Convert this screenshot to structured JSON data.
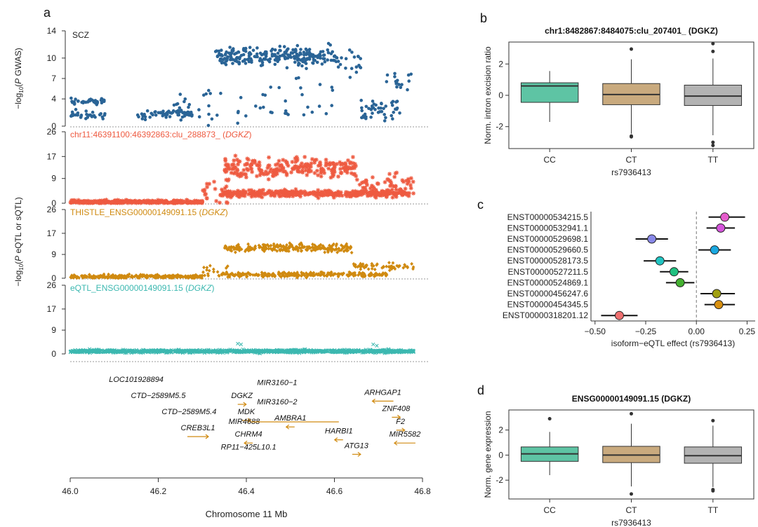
{
  "panel_letters": {
    "a": "a",
    "b": "b",
    "c": "c",
    "d": "d"
  },
  "chart_data": [
    {
      "id": "a",
      "type": "scatter",
      "title": "",
      "xlabel": "Chromosome 11 Mb",
      "xlim": [
        46.0,
        46.8
      ],
      "x_ticks": [
        "46.0",
        "46.2",
        "46.4",
        "46.6",
        "46.8"
      ],
      "ylabel_gwas_pre": "−log",
      "ylabel_gwas_sub": "10",
      "ylabel_gwas_post": "(P GWAS)",
      "ylabel_qtl_pre": "−log",
      "ylabel_qtl_sub": "10",
      "ylabel_qtl_post": "(P eQTL or sQTL)",
      "tracks": [
        {
          "label": "SCZ",
          "label_gene": "",
          "color": "#2a6496",
          "marker": "dot",
          "y_ticks": [
            0,
            4,
            7,
            10,
            14
          ],
          "ylim": [
            0,
            14
          ],
          "pattern": [
            [
              46.0,
              46.08,
              1.6,
              0.6,
              0.4
            ],
            [
              46.0,
              46.08,
              3.6,
              0.4,
              0.45
            ],
            [
              46.15,
              46.2,
              1.5,
              0.6,
              0.3
            ],
            [
              46.2,
              46.28,
              1.8,
              0.7,
              0.6
            ],
            [
              46.22,
              46.28,
              3.0,
              1.8,
              0.2
            ],
            [
              46.28,
              46.36,
              3.0,
              3.0,
              0.15
            ],
            [
              46.33,
              46.6,
              10.3,
              1.3,
              0.9
            ],
            [
              46.38,
              46.6,
              4.0,
              3.5,
              0.15
            ],
            [
              46.6,
              46.66,
              9.0,
              2.0,
              0.4
            ],
            [
              46.66,
              46.75,
              2.5,
              1.5,
              0.5
            ],
            [
              46.7,
              46.78,
              7.0,
              1.3,
              0.2
            ]
          ]
        },
        {
          "label": "chr11:46391100:46392863:clu_288873_ ",
          "label_gene": "DGKZ",
          "color": "#ee5a40",
          "marker": "star",
          "y_ticks": [
            0,
            9,
            17,
            26
          ],
          "ylim": [
            0,
            26
          ],
          "pattern": [
            [
              46.0,
              46.3,
              0.5,
              0.6,
              1.0
            ],
            [
              46.3,
              46.36,
              4.0,
              3.5,
              0.4
            ],
            [
              46.34,
              46.77,
              3.5,
              1.2,
              0.9
            ],
            [
              46.35,
              46.65,
              13.0,
              3.5,
              0.8
            ],
            [
              46.65,
              46.78,
              7.0,
              4.0,
              0.4
            ]
          ]
        },
        {
          "label": "THISTLE_ENSG00000149091.15 ",
          "label_gene": "DGKZ",
          "color": "#d08a10",
          "marker": "diamond",
          "y_ticks": [
            0,
            9,
            17,
            26
          ],
          "ylim": [
            0,
            26
          ],
          "pattern": [
            [
              46.0,
              46.3,
              0.6,
              0.6,
              1.0
            ],
            [
              46.3,
              46.36,
              2.5,
              2.0,
              0.3
            ],
            [
              46.34,
              46.72,
              1.4,
              0.8,
              0.7
            ],
            [
              46.35,
              46.64,
              11.5,
              1.5,
              0.8
            ],
            [
              46.64,
              46.78,
              4.5,
              1.2,
              0.4
            ]
          ]
        },
        {
          "label": "eQTL_ENSG00000149091.15 ",
          "label_gene": "DGKZ",
          "color": "#3cb8b0",
          "marker": "cross",
          "y_ticks": [
            0,
            9,
            17,
            26
          ],
          "ylim": [
            0,
            26
          ],
          "pattern": [
            [
              46.0,
              46.78,
              1.0,
              0.5,
              1.6
            ],
            [
              46.37,
              46.4,
              3.5,
              0.8,
              0.05
            ],
            [
              46.68,
              46.72,
              3.5,
              0.5,
              0.05
            ]
          ]
        }
      ],
      "genes": [
        {
          "name": "LOC101928894",
          "x": 46.15,
          "row": 0,
          "strand": 0
        },
        {
          "name": "CTD−2589M5.5",
          "x": 46.2,
          "row": 1,
          "strand": 0
        },
        {
          "name": "CTD−2589M5.4",
          "x": 46.27,
          "row": 2,
          "strand": 0
        },
        {
          "name": "CREB3L1",
          "x": 46.29,
          "row": 3,
          "strand": 1
        },
        {
          "name": "DGKZ",
          "x": 46.39,
          "row": 1,
          "strand": 1
        },
        {
          "name": "MDK",
          "x": 46.4,
          "row": 2,
          "strand": 1
        },
        {
          "name": "MIR4688",
          "x": 46.395,
          "row": 2.6,
          "strand": 0
        },
        {
          "name": "CHRM4",
          "x": 46.405,
          "row": 3.4,
          "strand": -1
        },
        {
          "name": "RP11−425L10.1",
          "x": 46.405,
          "row": 4.2,
          "strand": 0
        },
        {
          "name": "MIR3160−1",
          "x": 46.47,
          "row": 0.2,
          "strand": 0
        },
        {
          "name": "MIR3160−2",
          "x": 46.47,
          "row": 1.4,
          "strand": 0
        },
        {
          "name": "AMBRA1",
          "x": 46.5,
          "row": 2.4,
          "strand": -1
        },
        {
          "name": "HARBI1",
          "x": 46.61,
          "row": 3.2,
          "strand": -1
        },
        {
          "name": "ATG13",
          "x": 46.65,
          "row": 4.1,
          "strand": 1
        },
        {
          "name": "ARHGAP1",
          "x": 46.71,
          "row": 0.8,
          "strand": -1
        },
        {
          "name": "ZNF408",
          "x": 46.74,
          "row": 1.8,
          "strand": 1
        },
        {
          "name": "F2",
          "x": 46.75,
          "row": 2.6,
          "strand": 1
        },
        {
          "name": "MIR5582",
          "x": 46.76,
          "row": 3.4,
          "strand": -1
        }
      ]
    },
    {
      "id": "b",
      "type": "box",
      "title": "chr1:8482867:8484075:clu_207401_ (DGKZ)",
      "xlabel": "rs7936413",
      "ylabel": "Norm. intron excision ratio",
      "ylim": [
        -3.4,
        3.4
      ],
      "y_ticks": [
        -2,
        0,
        2
      ],
      "boxes": [
        {
          "category": "CC",
          "q1": -0.45,
          "median": 0.6,
          "q3": 0.8,
          "lo": -1.7,
          "hi": 1.55,
          "outliers": [],
          "color": "#5ec4a4"
        },
        {
          "category": "CT",
          "q1": -0.6,
          "median": 0.05,
          "q3": 0.75,
          "lo": -2.45,
          "hi": 2.3,
          "outliers": [
            2.95,
            -2.6,
            -2.65
          ],
          "color": "#c9aa7e"
        },
        {
          "category": "TT",
          "q1": -0.65,
          "median": -0.05,
          "q3": 0.65,
          "lo": -2.55,
          "hi": 2.35,
          "outliers": [
            3.3,
            2.8,
            -3.0,
            -3.2
          ],
          "color": "#b3b3b3"
        }
      ]
    },
    {
      "id": "c",
      "type": "forest",
      "title": "",
      "xlabel": "isoform−eQTL effect (rs7936413)",
      "xlim": [
        -0.52,
        0.29
      ],
      "x_ticks": [
        -0.5,
        -0.25,
        0.0,
        0.25
      ],
      "x_tick_labels": [
        "−0.50",
        "−0.25",
        "0.00",
        "0.25"
      ],
      "rows": [
        {
          "label": "ENST00000534215.5",
          "effect": 0.14,
          "lo": 0.06,
          "hi": 0.24,
          "color": "#e55ccc"
        },
        {
          "label": "ENST00000532941.1",
          "effect": 0.12,
          "lo": 0.05,
          "hi": 0.19,
          "color": "#d555dc"
        },
        {
          "label": "ENST00000529698.1",
          "effect": -0.22,
          "lo": -0.3,
          "hi": -0.14,
          "color": "#8888e8"
        },
        {
          "label": "ENST00000529660.5",
          "effect": 0.09,
          "lo": 0.01,
          "hi": 0.17,
          "color": "#1aa8e0"
        },
        {
          "label": "ENST00000528173.5",
          "effect": -0.18,
          "lo": -0.26,
          "hi": -0.1,
          "color": "#22c4c2"
        },
        {
          "label": "ENST00000527211.5",
          "effect": -0.11,
          "lo": -0.18,
          "hi": -0.04,
          "color": "#20c080"
        },
        {
          "label": "ENST00000524869.1",
          "effect": -0.08,
          "lo": -0.15,
          "hi": -0.01,
          "color": "#44b030"
        },
        {
          "label": "ENST00000456247.6",
          "effect": 0.1,
          "lo": 0.02,
          "hi": 0.19,
          "color": "#a0a010"
        },
        {
          "label": "ENST00000454345.5",
          "effect": 0.11,
          "lo": 0.04,
          "hi": 0.19,
          "color": "#d89010"
        },
        {
          "label": "ENST00000318201.12",
          "effect": -0.38,
          "lo": -0.47,
          "hi": -0.29,
          "color": "#f07070"
        }
      ]
    },
    {
      "id": "d",
      "type": "box",
      "title": "ENSG00000149091.15 (DGKZ)",
      "xlabel": "rs7936413",
      "ylabel": "Norm. gene expression",
      "ylim": [
        -3.5,
        3.6
      ],
      "y_ticks": [
        -2,
        0,
        2
      ],
      "boxes": [
        {
          "category": "CC",
          "q1": -0.5,
          "median": 0.1,
          "q3": 0.65,
          "lo": -1.6,
          "hi": 1.85,
          "outliers": [
            2.9
          ],
          "color": "#5ec4a4"
        },
        {
          "category": "CT",
          "q1": -0.6,
          "median": 0.0,
          "q3": 0.7,
          "lo": -2.5,
          "hi": 2.5,
          "outliers": [
            3.3,
            -3.1
          ],
          "color": "#c9aa7e"
        },
        {
          "category": "TT",
          "q1": -0.65,
          "median": -0.05,
          "q3": 0.65,
          "lo": -2.55,
          "hi": 2.35,
          "outliers": [
            2.75,
            -2.75,
            -2.85
          ],
          "color": "#b3b3b3"
        }
      ]
    }
  ]
}
